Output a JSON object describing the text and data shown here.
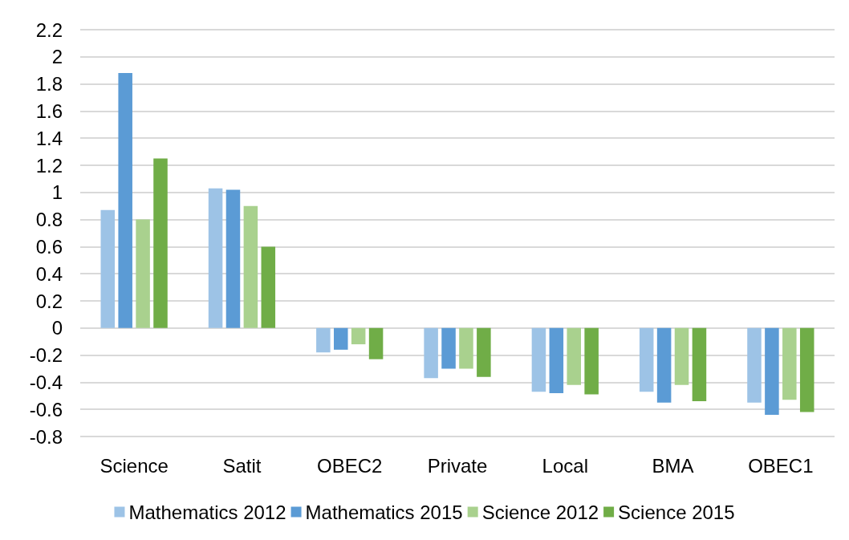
{
  "chart_data": {
    "type": "bar",
    "categories": [
      "Science",
      "Satit",
      "OBEC2",
      "Private",
      "Local",
      "BMA",
      "OBEC1"
    ],
    "series": [
      {
        "name": "Mathematics 2012",
        "color": "#9dc3e6",
        "values": [
          0.87,
          1.03,
          -0.18,
          -0.37,
          -0.47,
          -0.47,
          -0.55
        ]
      },
      {
        "name": "Mathematics 2015",
        "color": "#5b9bd5",
        "values": [
          1.88,
          1.02,
          -0.16,
          -0.3,
          -0.48,
          -0.55,
          -0.64
        ]
      },
      {
        "name": "Science 2012",
        "color": "#a9d18e",
        "values": [
          0.8,
          0.9,
          -0.12,
          -0.3,
          -0.42,
          -0.42,
          -0.53
        ]
      },
      {
        "name": "Science 2015",
        "color": "#70ad47",
        "values": [
          1.25,
          0.6,
          -0.23,
          -0.36,
          -0.49,
          -0.54,
          -0.62
        ]
      }
    ],
    "ylim": [
      -0.8,
      2.2
    ],
    "yticks": [
      -0.8,
      -0.6,
      -0.4,
      -0.2,
      0,
      0.2,
      0.4,
      0.6,
      0.8,
      1,
      1.2,
      1.4,
      1.6,
      1.8,
      2,
      2.2
    ],
    "grid": "y",
    "legend": "bottom"
  }
}
